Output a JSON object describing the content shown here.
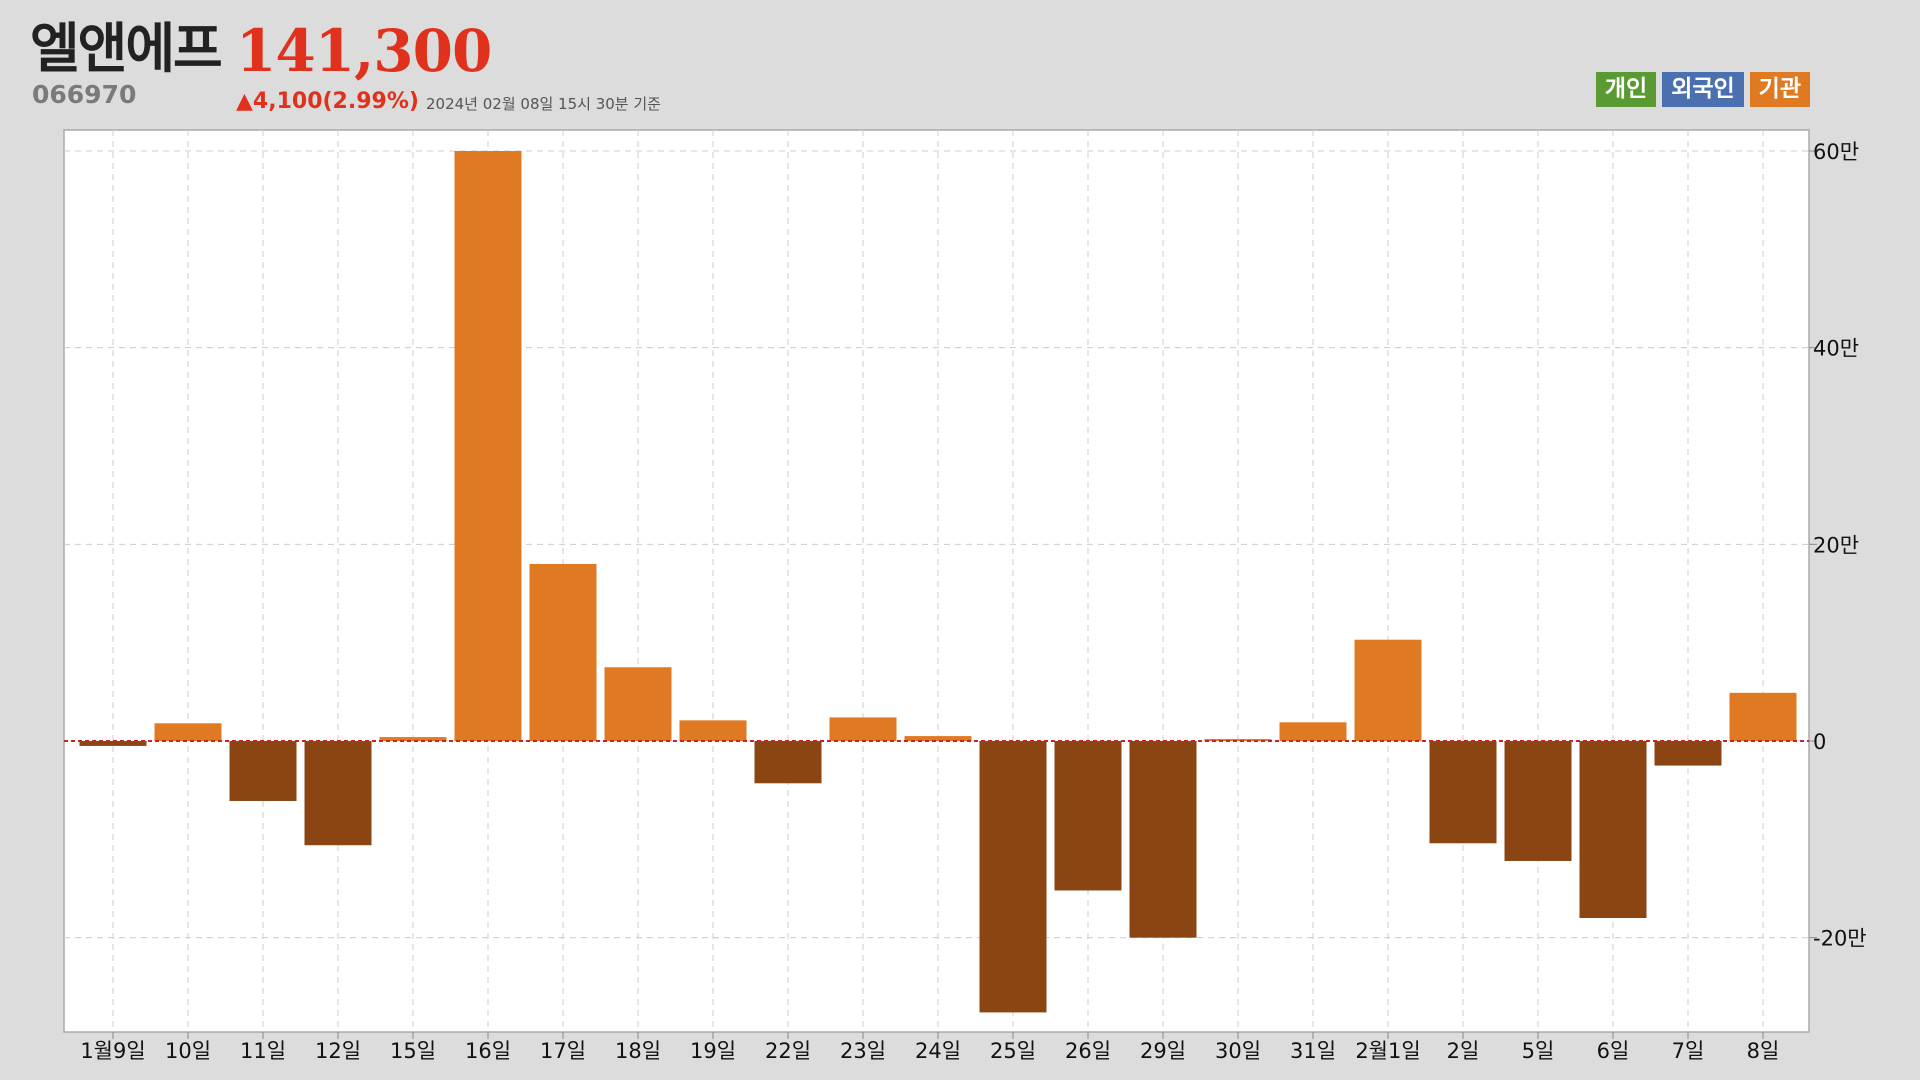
{
  "header": {
    "name": "엘앤에프",
    "price": "141,300",
    "code": "066970",
    "change": "▲4,100(2.99%)",
    "date": "2024년 02월 08일 15시 30분 기준"
  },
  "legend": [
    {
      "label": "개인",
      "color": "#5a9a32"
    },
    {
      "label": "외국인",
      "color": "#4a70b0"
    },
    {
      "label": "기관",
      "color": "#e07a22"
    }
  ],
  "chart_data": {
    "type": "bar",
    "title": "",
    "xlabel": "",
    "ylabel": "",
    "categories": [
      "1월9일",
      "10일",
      "11일",
      "12일",
      "15일",
      "16일",
      "17일",
      "18일",
      "19일",
      "22일",
      "23일",
      "24일",
      "25일",
      "26일",
      "29일",
      "30일",
      "31일",
      "2월1일",
      "2일",
      "5일",
      "6일",
      "7일",
      "8일"
    ],
    "series": [
      {
        "values": [
          -5000,
          18000,
          -61000,
          -106000,
          4000,
          600000,
          180000,
          75000,
          21000,
          -43000,
          24000,
          5000,
          -276000,
          -152000,
          -200000,
          2000,
          19000,
          103000,
          -104000,
          -122000,
          -180000,
          -25000,
          49000
        ]
      }
    ],
    "ylim": [
      -300000,
      620000
    ],
    "yticks": [
      {
        "value": 600000,
        "label": "60만"
      },
      {
        "value": 400000,
        "label": "40만"
      },
      {
        "value": 200000,
        "label": "20만"
      },
      {
        "value": 0,
        "label": "0"
      },
      {
        "value": -200000,
        "label": "-20만"
      }
    ],
    "y_axis_position": "right",
    "grid": true,
    "zero_line": "dashed red",
    "colors": {
      "positive": "#e07a22",
      "negative": "#8b4513",
      "zero_line": "#cc2222"
    }
  }
}
